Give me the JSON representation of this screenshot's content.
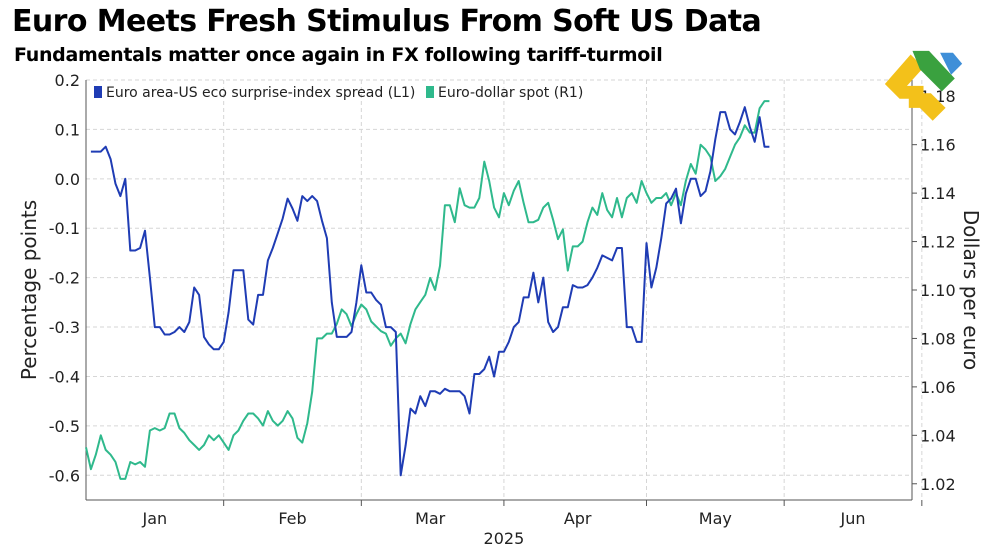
{
  "title": "Euro Meets Fresh Stimulus From Soft US Data",
  "subtitle": "Fundamentals matter once again in FX following tariff-turmoil",
  "colors": {
    "series_left": "#1f3cb4",
    "series_right": "#2fb98c",
    "grid": "#d6d6d6",
    "text": "#222222"
  },
  "logo": {
    "icon": "brand-logo-icon"
  },
  "chart_data": {
    "type": "line",
    "title": "Euro Meets Fresh Stimulus From Soft US Data",
    "subtitle": "Fundamentals matter once again in FX following tariff-turmoil",
    "xlabel": "2025",
    "ylabel_left": "Percentage points",
    "ylabel_right": "Dollars per euro",
    "x_ticks": [
      "Jan",
      "Feb",
      "Mar",
      "Apr",
      "May",
      "Jun"
    ],
    "x_range": [
      0,
      168
    ],
    "x_tick_positions": [
      14,
      42,
      70,
      100,
      128,
      156
    ],
    "ylim_left": [
      -0.65,
      0.2
    ],
    "ylim_right": [
      1.0133,
      1.1867
    ],
    "y_ticks_left": [
      -0.6,
      -0.5,
      -0.4,
      -0.3,
      -0.2,
      -0.1,
      0.0,
      0.1,
      0.2
    ],
    "y_tick_labels_left": [
      "-0.6",
      "-0.5",
      "-0.4",
      "-0.3",
      "-0.2",
      "-0.1",
      "0.0",
      "0.1",
      "0.2"
    ],
    "y_ticks_right": [
      1.02,
      1.04,
      1.06,
      1.08,
      1.1,
      1.12,
      1.14,
      1.16,
      1.18
    ],
    "y_tick_labels_right": [
      "1.02",
      "1.04",
      "1.06",
      "1.08",
      "1.10",
      "1.12",
      "1.14",
      "1.16",
      "1.18"
    ],
    "legend": {
      "position": "top-left",
      "entries": [
        "Euro area-US eco surprise-index spread (L1)",
        "Euro-dollar spot (R1)"
      ]
    },
    "series": [
      {
        "name": "Euro area-US eco surprise-index spread (L1)",
        "axis": "left",
        "points": [
          [
            1,
            0.055
          ],
          [
            3,
            0.055
          ],
          [
            4,
            0.065
          ],
          [
            5,
            0.04
          ],
          [
            6,
            -0.01
          ],
          [
            7,
            -0.035
          ],
          [
            8,
            0.0
          ],
          [
            9,
            -0.145
          ],
          [
            10,
            -0.145
          ],
          [
            11,
            -0.14
          ],
          [
            12,
            -0.105
          ],
          [
            13,
            -0.2
          ],
          [
            14,
            -0.3
          ],
          [
            15,
            -0.3
          ],
          [
            16,
            -0.315
          ],
          [
            17,
            -0.315
          ],
          [
            18,
            -0.31
          ],
          [
            19,
            -0.3
          ],
          [
            20,
            -0.31
          ],
          [
            21,
            -0.29
          ],
          [
            22,
            -0.22
          ],
          [
            23,
            -0.235
          ],
          [
            24,
            -0.32
          ],
          [
            25,
            -0.335
          ],
          [
            26,
            -0.345
          ],
          [
            27,
            -0.345
          ],
          [
            28,
            -0.33
          ],
          [
            29,
            -0.27
          ],
          [
            30,
            -0.185
          ],
          [
            31,
            -0.185
          ],
          [
            32,
            -0.185
          ],
          [
            33,
            -0.285
          ],
          [
            34,
            -0.295
          ],
          [
            35,
            -0.235
          ],
          [
            36,
            -0.235
          ],
          [
            37,
            -0.165
          ],
          [
            38,
            -0.14
          ],
          [
            39,
            -0.11
          ],
          [
            40,
            -0.08
          ],
          [
            41,
            -0.04
          ],
          [
            42,
            -0.06
          ],
          [
            43,
            -0.085
          ],
          [
            44,
            -0.035
          ],
          [
            45,
            -0.045
          ],
          [
            46,
            -0.035
          ],
          [
            47,
            -0.045
          ],
          [
            48,
            -0.085
          ],
          [
            49,
            -0.12
          ],
          [
            50,
            -0.25
          ],
          [
            51,
            -0.32
          ],
          [
            52,
            -0.32
          ],
          [
            53,
            -0.32
          ],
          [
            54,
            -0.31
          ],
          [
            55,
            -0.25
          ],
          [
            56,
            -0.175
          ],
          [
            57,
            -0.23
          ],
          [
            58,
            -0.23
          ],
          [
            59,
            -0.245
          ],
          [
            60,
            -0.255
          ],
          [
            61,
            -0.3
          ],
          [
            62,
            -0.3
          ],
          [
            63,
            -0.31
          ],
          [
            64,
            -0.6
          ],
          [
            65,
            -0.54
          ],
          [
            66,
            -0.465
          ],
          [
            67,
            -0.475
          ],
          [
            68,
            -0.44
          ],
          [
            69,
            -0.46
          ],
          [
            70,
            -0.43
          ],
          [
            71,
            -0.43
          ],
          [
            72,
            -0.435
          ],
          [
            73,
            -0.425
          ],
          [
            74,
            -0.43
          ],
          [
            75,
            -0.43
          ],
          [
            76,
            -0.43
          ],
          [
            77,
            -0.44
          ],
          [
            78,
            -0.475
          ],
          [
            79,
            -0.395
          ],
          [
            80,
            -0.395
          ],
          [
            81,
            -0.385
          ],
          [
            82,
            -0.36
          ],
          [
            83,
            -0.4
          ],
          [
            84,
            -0.35
          ],
          [
            85,
            -0.35
          ],
          [
            86,
            -0.33
          ],
          [
            87,
            -0.3
          ],
          [
            88,
            -0.29
          ],
          [
            89,
            -0.24
          ],
          [
            90,
            -0.24
          ],
          [
            91,
            -0.19
          ],
          [
            92,
            -0.25
          ],
          [
            93,
            -0.2
          ],
          [
            94,
            -0.29
          ],
          [
            95,
            -0.31
          ],
          [
            96,
            -0.3
          ],
          [
            97,
            -0.26
          ],
          [
            98,
            -0.26
          ],
          [
            99,
            -0.215
          ],
          [
            100,
            -0.22
          ],
          [
            101,
            -0.22
          ],
          [
            102,
            -0.215
          ],
          [
            103,
            -0.2
          ],
          [
            104,
            -0.18
          ],
          [
            105,
            -0.155
          ],
          [
            106,
            -0.16
          ],
          [
            107,
            -0.165
          ],
          [
            108,
            -0.14
          ],
          [
            109,
            -0.14
          ],
          [
            110,
            -0.3
          ],
          [
            111,
            -0.3
          ],
          [
            112,
            -0.33
          ],
          [
            113,
            -0.33
          ],
          [
            114,
            -0.13
          ],
          [
            115,
            -0.22
          ],
          [
            116,
            -0.18
          ],
          [
            117,
            -0.12
          ],
          [
            118,
            -0.05
          ],
          [
            119,
            -0.04
          ],
          [
            120,
            -0.02
          ],
          [
            121,
            -0.09
          ],
          [
            122,
            -0.03
          ],
          [
            123,
            0.0
          ],
          [
            124,
            -0.0
          ],
          [
            125,
            -0.035
          ],
          [
            126,
            -0.025
          ],
          [
            127,
            0.015
          ],
          [
            128,
            0.08
          ],
          [
            129,
            0.135
          ],
          [
            130,
            0.135
          ],
          [
            131,
            0.1
          ],
          [
            132,
            0.09
          ],
          [
            133,
            0.115
          ],
          [
            134,
            0.145
          ],
          [
            135,
            0.105
          ],
          [
            136,
            0.075
          ],
          [
            137,
            0.125
          ],
          [
            138,
            0.065
          ],
          [
            139,
            0.065
          ]
        ]
      },
      {
        "name": "Euro-dollar spot (R1)",
        "axis": "right",
        "points": [
          [
            0,
            1.035
          ],
          [
            1,
            1.026
          ],
          [
            2,
            1.032
          ],
          [
            3,
            1.04
          ],
          [
            4,
            1.034
          ],
          [
            5,
            1.032
          ],
          [
            6,
            1.029
          ],
          [
            7,
            1.022
          ],
          [
            8,
            1.022
          ],
          [
            9,
            1.029
          ],
          [
            10,
            1.028
          ],
          [
            11,
            1.029
          ],
          [
            12,
            1.027
          ],
          [
            13,
            1.042
          ],
          [
            14,
            1.043
          ],
          [
            15,
            1.042
          ],
          [
            16,
            1.043
          ],
          [
            17,
            1.049
          ],
          [
            18,
            1.049
          ],
          [
            19,
            1.043
          ],
          [
            20,
            1.041
          ],
          [
            21,
            1.038
          ],
          [
            22,
            1.036
          ],
          [
            23,
            1.034
          ],
          [
            24,
            1.036
          ],
          [
            25,
            1.04
          ],
          [
            26,
            1.038
          ],
          [
            27,
            1.04
          ],
          [
            28,
            1.037
          ],
          [
            29,
            1.034
          ],
          [
            30,
            1.04
          ],
          [
            31,
            1.042
          ],
          [
            32,
            1.046
          ],
          [
            33,
            1.049
          ],
          [
            34,
            1.049
          ],
          [
            35,
            1.047
          ],
          [
            36,
            1.044
          ],
          [
            37,
            1.05
          ],
          [
            38,
            1.046
          ],
          [
            39,
            1.044
          ],
          [
            40,
            1.046
          ],
          [
            41,
            1.05
          ],
          [
            42,
            1.047
          ],
          [
            43,
            1.039
          ],
          [
            44,
            1.037
          ],
          [
            45,
            1.045
          ],
          [
            46,
            1.058
          ],
          [
            47,
            1.08
          ],
          [
            48,
            1.08
          ],
          [
            49,
            1.082
          ],
          [
            50,
            1.082
          ],
          [
            51,
            1.086
          ],
          [
            52,
            1.092
          ],
          [
            53,
            1.09
          ],
          [
            54,
            1.085
          ],
          [
            55,
            1.09
          ],
          [
            56,
            1.094
          ],
          [
            57,
            1.092
          ],
          [
            58,
            1.087
          ],
          [
            59,
            1.085
          ],
          [
            60,
            1.083
          ],
          [
            61,
            1.082
          ],
          [
            62,
            1.077
          ],
          [
            63,
            1.08
          ],
          [
            64,
            1.082
          ],
          [
            65,
            1.078
          ],
          [
            66,
            1.086
          ],
          [
            67,
            1.092
          ],
          [
            68,
            1.095
          ],
          [
            69,
            1.098
          ],
          [
            70,
            1.105
          ],
          [
            71,
            1.1
          ],
          [
            72,
            1.11
          ],
          [
            73,
            1.135
          ],
          [
            74,
            1.135
          ],
          [
            75,
            1.128
          ],
          [
            76,
            1.142
          ],
          [
            77,
            1.135
          ],
          [
            78,
            1.134
          ],
          [
            79,
            1.134
          ],
          [
            80,
            1.138
          ],
          [
            81,
            1.153
          ],
          [
            82,
            1.145
          ],
          [
            83,
            1.134
          ],
          [
            84,
            1.13
          ],
          [
            85,
            1.14
          ],
          [
            86,
            1.135
          ],
          [
            87,
            1.141
          ],
          [
            88,
            1.145
          ],
          [
            89,
            1.136
          ],
          [
            90,
            1.128
          ],
          [
            91,
            1.128
          ],
          [
            92,
            1.129
          ],
          [
            93,
            1.134
          ],
          [
            94,
            1.136
          ],
          [
            95,
            1.129
          ],
          [
            96,
            1.121
          ],
          [
            97,
            1.125
          ],
          [
            98,
            1.108
          ],
          [
            99,
            1.118
          ],
          [
            100,
            1.118
          ],
          [
            101,
            1.12
          ],
          [
            102,
            1.128
          ],
          [
            103,
            1.134
          ],
          [
            104,
            1.131
          ],
          [
            105,
            1.14
          ],
          [
            106,
            1.133
          ],
          [
            107,
            1.13
          ],
          [
            108,
            1.138
          ],
          [
            109,
            1.13
          ],
          [
            110,
            1.138
          ],
          [
            111,
            1.14
          ],
          [
            112,
            1.136
          ],
          [
            113,
            1.145
          ],
          [
            114,
            1.14
          ],
          [
            115,
            1.136
          ],
          [
            116,
            1.138
          ],
          [
            117,
            1.138
          ],
          [
            118,
            1.14
          ],
          [
            119,
            1.135
          ],
          [
            120,
            1.14
          ],
          [
            121,
            1.135
          ],
          [
            122,
            1.145
          ],
          [
            123,
            1.152
          ],
          [
            124,
            1.148
          ],
          [
            125,
            1.16
          ],
          [
            126,
            1.158
          ],
          [
            127,
            1.155
          ],
          [
            128,
            1.145
          ],
          [
            129,
            1.147
          ],
          [
            130,
            1.15
          ],
          [
            131,
            1.155
          ],
          [
            132,
            1.16
          ],
          [
            133,
            1.163
          ],
          [
            134,
            1.168
          ],
          [
            135,
            1.165
          ],
          [
            136,
            1.165
          ],
          [
            137,
            1.175
          ],
          [
            138,
            1.178
          ],
          [
            139,
            1.178
          ]
        ]
      }
    ]
  }
}
